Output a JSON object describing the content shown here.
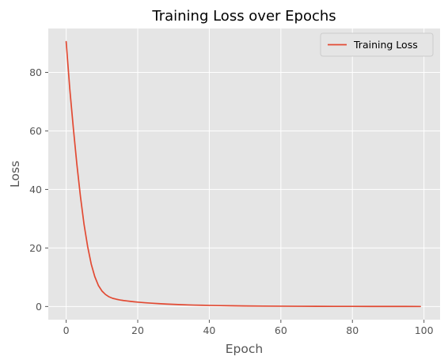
{
  "chart_data": {
    "type": "line",
    "title": "Training Loss over Epochs",
    "xlabel": "Epoch",
    "ylabel": "Loss",
    "xlim": [
      -5,
      104.5
    ],
    "ylim": [
      -4.5,
      95
    ],
    "xticks": [
      0,
      20,
      40,
      60,
      80,
      100
    ],
    "yticks": [
      0,
      20,
      40,
      60,
      80
    ],
    "grid": true,
    "legend_position": "top-right",
    "colors": {
      "background": "#E5E5E5",
      "grid": "#FFFFFF",
      "line": "#E24A33"
    },
    "series": [
      {
        "name": "Training Loss",
        "x": [
          0,
          1,
          2,
          3,
          4,
          5,
          6,
          7,
          8,
          9,
          10,
          11,
          12,
          13,
          14,
          15,
          16,
          17,
          18,
          19,
          20,
          22,
          24,
          26,
          28,
          30,
          32,
          34,
          36,
          38,
          40,
          43,
          46,
          50,
          55,
          60,
          65,
          70,
          75,
          80,
          85,
          90,
          95,
          99
        ],
        "values": [
          90.5,
          74.5,
          61,
          48.5,
          37.5,
          28,
          20.5,
          14.5,
          10.2,
          7.2,
          5.3,
          4.1,
          3.3,
          2.8,
          2.5,
          2.25,
          2.05,
          1.9,
          1.75,
          1.62,
          1.5,
          1.3,
          1.12,
          0.97,
          0.84,
          0.73,
          0.64,
          0.56,
          0.49,
          0.43,
          0.38,
          0.31,
          0.26,
          0.2,
          0.15,
          0.11,
          0.085,
          0.065,
          0.05,
          0.04,
          0.03,
          0.025,
          0.02,
          0.015
        ]
      }
    ]
  }
}
